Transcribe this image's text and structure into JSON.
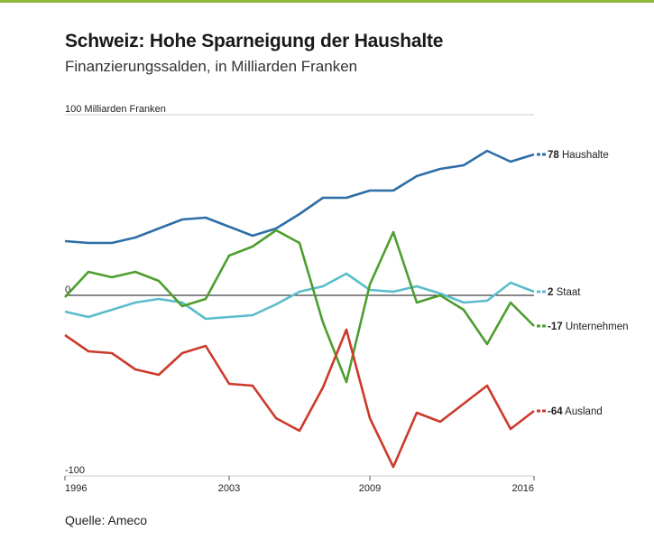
{
  "title": "Schweiz: Hohe Sparneigung der Haushalte",
  "subtitle": "Finanzierungssalden, in Milliarden Franken",
  "source": "Quelle: Ameco",
  "chart_data": {
    "type": "line",
    "ylabel": "100 Milliarden Franken",
    "ylim": [
      -100,
      100
    ],
    "ytick_labels": [
      "100 Milliarden Franken",
      "0",
      "-100"
    ],
    "xlim": [
      1996,
      2016
    ],
    "xtick_labels": [
      "1996",
      "2003",
      "2009",
      "2016"
    ],
    "xticks": [
      1996,
      2003,
      2009,
      2016
    ],
    "x": [
      1996,
      1997,
      1998,
      1999,
      2000,
      2001,
      2002,
      2003,
      2004,
      2005,
      2006,
      2007,
      2008,
      2009,
      2010,
      2011,
      2012,
      2013,
      2014,
      2015,
      2016
    ],
    "series": [
      {
        "name": "Haushalte",
        "end_label": "78",
        "color": "#2e6ea6",
        "values": [
          30,
          29,
          29,
          32,
          37,
          42,
          43,
          38,
          33,
          37,
          45,
          54,
          54,
          58,
          58,
          66,
          70,
          72,
          80,
          74,
          78
        ]
      },
      {
        "name": "Staat",
        "end_label": "2",
        "color": "#5bbccc",
        "values": [
          -9,
          -12,
          -8,
          -4,
          -2,
          -4,
          -13,
          -12,
          -11,
          -5,
          2,
          5,
          12,
          3,
          2,
          5,
          1,
          -4,
          -3,
          7,
          2
        ]
      },
      {
        "name": "Unternehmen",
        "end_label": "-17",
        "color": "#4d9e2e",
        "values": [
          -1,
          13,
          10,
          13,
          8,
          -6,
          -2,
          22,
          27,
          36,
          29,
          -15,
          -48,
          6,
          35,
          -4,
          0,
          -8,
          -27,
          -4,
          -17
        ]
      },
      {
        "name": "Ausland",
        "end_label": "-64",
        "color": "#cc3a2b",
        "values": [
          -22,
          -31,
          -32,
          -41,
          -44,
          -32,
          -28,
          -49,
          -50,
          -68,
          -75,
          -51,
          -19,
          -68,
          -95,
          -65,
          -70,
          -60,
          -50,
          -74,
          -64
        ]
      }
    ]
  }
}
